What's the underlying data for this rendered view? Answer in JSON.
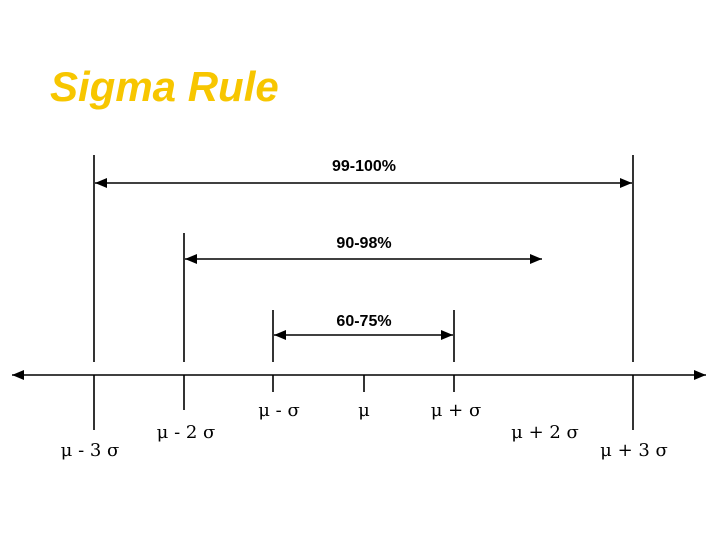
{
  "title": "Sigma Rule",
  "ranges": [
    "99-100%",
    "90-98%",
    "60-75%"
  ],
  "axis_labels": [
    "μ - 3 σ",
    "μ - 2 σ",
    "μ - σ",
    "μ",
    "μ + σ",
    "μ + 2 σ",
    "μ + 3 σ"
  ]
}
